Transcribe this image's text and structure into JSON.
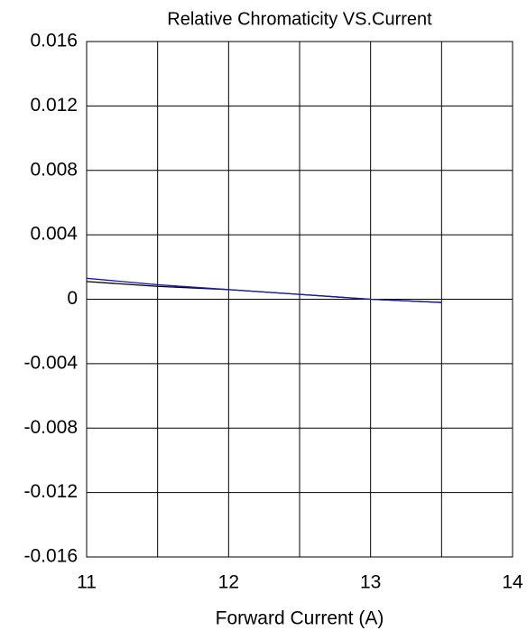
{
  "chart_data": {
    "type": "line",
    "title": "Relative Chromaticity VS.Current",
    "x_label": "Forward Current (A)",
    "x": [
      11,
      11.5,
      12,
      12.5,
      13,
      13.5
    ],
    "series": [
      {
        "color": "#000000",
        "values": [
          0.0011,
          0.0008,
          0.0006,
          0.0003,
          0.0,
          -0.0002
        ]
      },
      {
        "color": "#1a1aa6",
        "values": [
          0.0013,
          0.0009,
          0.0006,
          0.0003,
          0.0,
          -0.0002
        ]
      }
    ],
    "xlim": [
      11,
      14
    ],
    "xticks": [
      11,
      12,
      13,
      14
    ],
    "x_gridlines": [
      11.5,
      12.5,
      13.5
    ],
    "ylim": [
      -0.016,
      0.016
    ],
    "yticks": [
      0.016,
      0.012,
      0.008,
      0.004,
      0,
      -0.004,
      -0.008,
      -0.012,
      -0.016
    ],
    "grid": true
  }
}
